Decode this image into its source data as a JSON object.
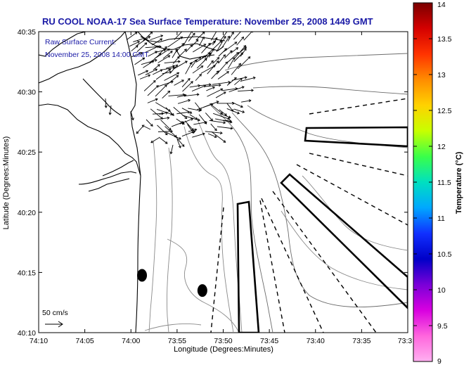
{
  "title": "RU COOL  NOAA-17  Sea Surface Temperature:  November 25, 2008 1449 GMT",
  "legend": {
    "line1": "Raw Surface Current:",
    "line2": "November 25, 2008 14:00 GMT",
    "scale_label": "50 cm/s"
  },
  "axes": {
    "xlabel": "Longitude (Degrees:Minutes)",
    "ylabel": "Latitude (Degrees:Minutes)",
    "xticks": [
      "74:10",
      "74:05",
      "74:00",
      "73:55",
      "73:50",
      "73:45",
      "73:40",
      "73:35",
      "73:3"
    ],
    "yticks": [
      "40:35",
      "40:30",
      "40:25",
      "40:20",
      "40:15",
      "40:10"
    ]
  },
  "colorbar": {
    "label": "Temperature (°C)",
    "ticks": [
      "14",
      "13.5",
      "13",
      "12.5",
      "12",
      "11.5",
      "11",
      "10.5",
      "10",
      "9.5",
      "9"
    ],
    "colors": [
      "#7a0000",
      "#d40000",
      "#ff3300",
      "#ff8c00",
      "#ffd200",
      "#c8ff00",
      "#39ff4a",
      "#00e0c0",
      "#00a8ff",
      "#1030ff",
      "#0000c8",
      "#7a00d8",
      "#d800e0",
      "#ff66dd",
      "#ffb0f0"
    ]
  },
  "map": {
    "lon_range_deg": [
      73.5,
      74.1667
    ],
    "lat_range_deg": [
      40.1667,
      40.5833
    ],
    "markers": [
      {
        "name": "marker-ellipse-1",
        "lon": 73.98,
        "lat": 40.246
      },
      {
        "name": "marker-ellipse-2",
        "lon": 73.871,
        "lat": 40.225
      }
    ]
  }
}
